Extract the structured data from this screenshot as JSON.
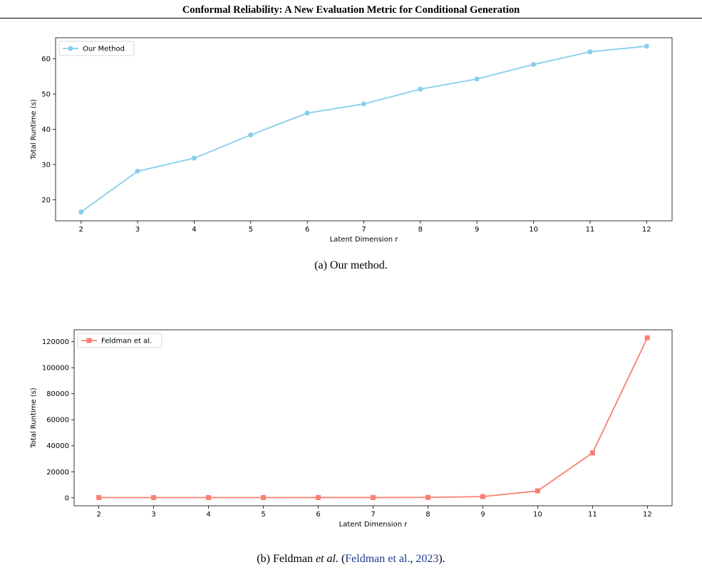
{
  "header": {
    "title": "Conformal Reliability: A New Evaluation Metric for Conditional Generation"
  },
  "captions": {
    "a": "(a) Our method.",
    "b_prefix": "(b) Feldman ",
    "b_etal": "et al.",
    "b_open": " (",
    "b_cite_name": "Feldman et al.",
    "b_sep": ", ",
    "b_cite_year": "2023",
    "b_close": ")."
  },
  "chart_data": [
    {
      "type": "line",
      "xlabel": "Latent Dimension r",
      "ylabel": "Total Runtime (s)",
      "x": [
        2,
        3,
        4,
        5,
        6,
        7,
        8,
        9,
        10,
        11,
        12
      ],
      "xlim": [
        1.55,
        12.45
      ],
      "ylim": [
        14.0,
        66.0
      ],
      "yticks": [
        20,
        30,
        40,
        50,
        60
      ],
      "ytick_labels": [
        "20",
        "30",
        "40",
        "50",
        "60"
      ],
      "grid": false,
      "legend": "top-left",
      "series": [
        {
          "name": "Our Method",
          "color": "#87ceeb",
          "marker": "circle",
          "values": [
            16.5,
            28.1,
            31.8,
            38.4,
            44.6,
            47.2,
            51.4,
            54.3,
            58.4,
            62.0,
            63.6
          ]
        }
      ]
    },
    {
      "type": "line",
      "xlabel": "Latent Dimension r",
      "ylabel": "Total Runtime (s)",
      "x": [
        2,
        3,
        4,
        5,
        6,
        7,
        8,
        9,
        10,
        11,
        12
      ],
      "xlim": [
        1.55,
        12.45
      ],
      "ylim": [
        -6150,
        129150
      ],
      "yticks": [
        0,
        20000,
        40000,
        60000,
        80000,
        100000,
        120000
      ],
      "ytick_labels": [
        "0",
        "20000",
        "40000",
        "60000",
        "80000",
        "100000",
        "120000"
      ],
      "grid": false,
      "legend": "top-left",
      "series": [
        {
          "name": "Feldman et al.",
          "color": "#fa8072",
          "marker": "square",
          "values": [
            150,
            150,
            150,
            160,
            170,
            190,
            300,
            900,
            5300,
            34500,
            123000
          ]
        }
      ]
    }
  ]
}
